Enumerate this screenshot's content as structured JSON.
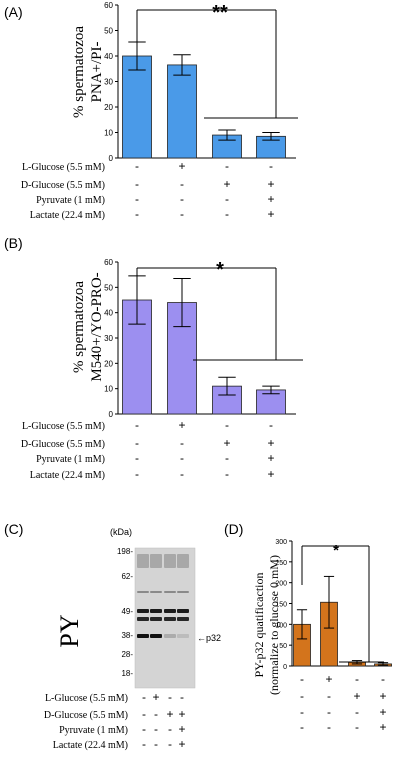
{
  "chart_data": [
    {
      "type": "bar",
      "panel_label": "(A)",
      "ylabel_lines": [
        "% spermatozoa",
        "PNA+/PI-"
      ],
      "ylim": [
        0,
        60
      ],
      "yticks": [
        0,
        10,
        20,
        30,
        40,
        50,
        60
      ],
      "bar_color": "#4a9ae8",
      "series": [
        {
          "values": [
            40,
            36.5,
            9,
            8.5
          ],
          "errors": [
            5.5,
            4,
            2,
            1.5
          ]
        }
      ],
      "significance": "**",
      "conditions": [
        {
          "label": "L-Glucose (5.5 mM)",
          "marks": [
            "-",
            "+",
            "-",
            "-"
          ]
        },
        {
          "label": "D-Glucose (5.5 mM)",
          "marks": [
            "-",
            "-",
            "+",
            "+"
          ]
        },
        {
          "label": "Pyruvate (1 mM)",
          "marks": [
            "-",
            "-",
            "-",
            "+"
          ]
        },
        {
          "label": "Lactate (22.4 mM)",
          "marks": [
            "-",
            "-",
            "-",
            "+"
          ]
        }
      ]
    },
    {
      "type": "bar",
      "panel_label": "(B)",
      "ylabel_lines": [
        "% spermatozoa",
        "M540+/YO-PRO-"
      ],
      "ylim": [
        0,
        60
      ],
      "yticks": [
        0,
        10,
        20,
        30,
        40,
        50,
        60
      ],
      "bar_color": "#9c8ff0",
      "series": [
        {
          "values": [
            45,
            44,
            11,
            9.5
          ],
          "errors": [
            9.5,
            9.5,
            3.5,
            1.5
          ]
        }
      ],
      "significance": "*",
      "conditions": [
        {
          "label": "L-Glucose (5.5 mM)",
          "marks": [
            "-",
            "+",
            "-",
            "-"
          ]
        },
        {
          "label": "D-Glucose (5.5 mM)",
          "marks": [
            "-",
            "-",
            "+",
            "+"
          ]
        },
        {
          "label": "Pyruvate (1 mM)",
          "marks": [
            "-",
            "-",
            "-",
            "+"
          ]
        },
        {
          "label": "Lactate (22.4 mM)",
          "marks": [
            "-",
            "-",
            "-",
            "+"
          ]
        }
      ]
    },
    {
      "type": "bar",
      "panel_label": "(D)",
      "ylabel_lines": [
        "PY-p32 quatificaction",
        "(normalize to glucose 0 mM)"
      ],
      "ylim": [
        0,
        300
      ],
      "yticks": [
        0,
        50,
        100,
        150,
        200,
        250,
        300
      ],
      "bar_color": "#d3741c",
      "series": [
        {
          "values": [
            100,
            153,
            9,
            5
          ],
          "errors": [
            35,
            62,
            4,
            3
          ]
        }
      ],
      "significance": "*"
    }
  ],
  "blot": {
    "panel_label": "(C)",
    "side_label": "PY",
    "kda_header": "(kDa)",
    "markers": [
      {
        "label": "198-",
        "kda": 198
      },
      {
        "label": "62-",
        "kda": 62
      },
      {
        "label": "49-",
        "kda": 49
      },
      {
        "label": "38-",
        "kda": 38
      },
      {
        "label": "28-",
        "kda": 28
      },
      {
        "label": "18-",
        "kda": 18
      }
    ],
    "band_label": "←p32",
    "p32_band_intensity": [
      1.0,
      1.0,
      0.2,
      0.12
    ]
  },
  "bottom_conditions": [
    {
      "label": "L-Glucose (5.5 mM)",
      "marks": [
        "-",
        "+",
        "-",
        "-"
      ]
    },
    {
      "label": "D-Glucose (5.5 mM)",
      "marks": [
        "-",
        "-",
        "+",
        "+"
      ]
    },
    {
      "label": "Pyruvate (1 mM)",
      "marks": [
        "-",
        "-",
        "-",
        "+"
      ]
    },
    {
      "label": "Lactate (22.4 mM)",
      "marks": [
        "-",
        "-",
        "-",
        "+"
      ]
    }
  ]
}
